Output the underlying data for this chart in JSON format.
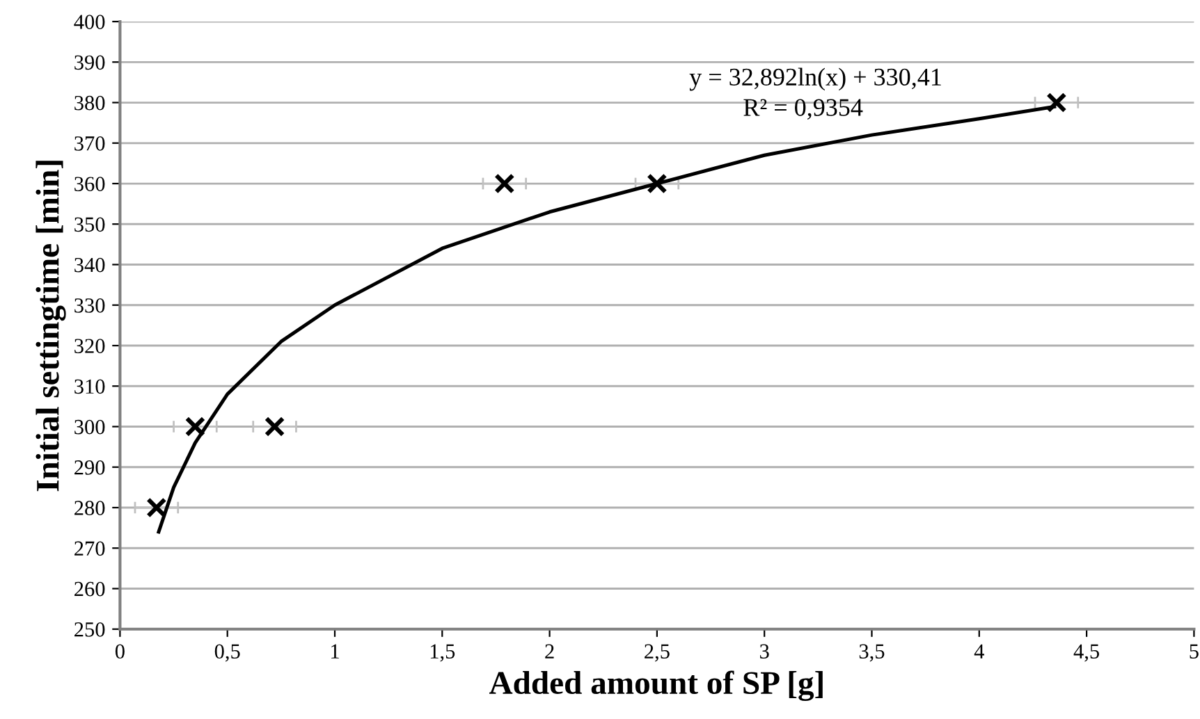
{
  "chart_data": {
    "type": "scatter",
    "xlabel": "Added amount of SP [g]",
    "ylabel": "Initial settingtime [min]",
    "annotations": [
      "y = 32,892ln(x) + 330,41",
      "R² = 0,9354"
    ],
    "series": [
      {
        "color": "#000000",
        "marker": "cross",
        "x": [
          0.17,
          0.35,
          0.72,
          1.79,
          2.5,
          4.36
        ],
        "values": [
          280,
          300,
          300,
          360,
          360,
          380
        ],
        "xerrors": [
          0.1,
          0.1,
          0.1,
          0.1,
          0.1,
          0.1
        ]
      },
      {
        "type": "line",
        "color": "#000000",
        "marker": "none",
        "line_style": "solid",
        "x": [
          0.18,
          0.25,
          0.35,
          0.5,
          0.75,
          1,
          1.5,
          2,
          2.5,
          3,
          3.5,
          4,
          4.35
        ],
        "values": [
          274,
          285,
          296,
          308,
          321,
          330,
          344,
          353,
          360,
          367,
          372,
          376,
          379
        ]
      }
    ],
    "xlim": [
      0,
      5
    ],
    "ylim": [
      250,
      400
    ],
    "xticks": [
      0,
      {
        "value": 0.5,
        "label": "0,5"
      },
      1,
      {
        "value": 1.5,
        "label": "1,5"
      },
      2,
      {
        "value": 2.5,
        "label": "2,5"
      },
      3,
      {
        "value": 3.5,
        "label": "3,5"
      },
      4,
      {
        "value": 4.5,
        "label": "4,5"
      },
      5
    ],
    "yticks": [
      250,
      260,
      270,
      280,
      290,
      300,
      310,
      320,
      330,
      340,
      350,
      360,
      370,
      380,
      390,
      400
    ],
    "grid": "y",
    "legend": false
  }
}
